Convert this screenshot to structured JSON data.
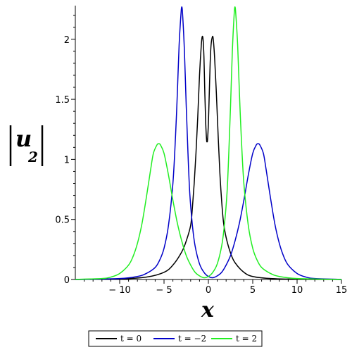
{
  "chart_data": {
    "type": "line",
    "xlabel": "x",
    "ylabel": {
      "base": "u",
      "subscript": "2"
    },
    "xlim": [
      -15,
      15
    ],
    "ylim": [
      0,
      2.28
    ],
    "xticks": [
      {
        "value": -10,
        "label": "− 10"
      },
      {
        "value": -5,
        "label": "− 5"
      },
      {
        "value": 0,
        "label": "0"
      },
      {
        "value": 5,
        "label": "5"
      },
      {
        "value": 10,
        "label": "10"
      },
      {
        "value": 15,
        "label": "15"
      }
    ],
    "yticks": [
      {
        "value": 0,
        "label": "0"
      },
      {
        "value": 0.5,
        "label": "0.5"
      },
      {
        "value": 1,
        "label": "1"
      },
      {
        "value": 1.5,
        "label": "1.5"
      },
      {
        "value": 2,
        "label": "2"
      }
    ],
    "legend_position": "bottom",
    "series": [
      {
        "name": "t = 0",
        "color": "#000000",
        "points": [
          [
            -15,
            0
          ],
          [
            -10,
            0.005
          ],
          [
            -7,
            0.02
          ],
          [
            -5,
            0.06
          ],
          [
            -4,
            0.12
          ],
          [
            -3,
            0.23
          ],
          [
            -2.5,
            0.32
          ],
          [
            -2,
            0.45
          ],
          [
            -1.8,
            0.6
          ],
          [
            -1.6,
            0.8
          ],
          [
            -1.4,
            1.05
          ],
          [
            -1.2,
            1.35
          ],
          [
            -1.0,
            1.7
          ],
          [
            -0.8,
            1.95
          ],
          [
            -0.7,
            2.02
          ],
          [
            -0.6,
            2.0
          ],
          [
            -0.5,
            1.85
          ],
          [
            -0.4,
            1.55
          ],
          [
            -0.3,
            1.3
          ],
          [
            -0.2,
            1.16
          ],
          [
            -0.15,
            1.15
          ],
          [
            -0.1,
            1.16
          ],
          [
            0,
            1.3
          ],
          [
            0.1,
            1.55
          ],
          [
            0.2,
            1.8
          ],
          [
            0.3,
            1.95
          ],
          [
            0.45,
            2.02
          ],
          [
            0.55,
            2.0
          ],
          [
            0.7,
            1.85
          ],
          [
            0.9,
            1.55
          ],
          [
            1.1,
            1.2
          ],
          [
            1.3,
            0.88
          ],
          [
            1.5,
            0.65
          ],
          [
            1.7,
            0.48
          ],
          [
            2,
            0.35
          ],
          [
            2.5,
            0.22
          ],
          [
            3,
            0.14
          ],
          [
            4,
            0.06
          ],
          [
            5,
            0.025
          ],
          [
            7,
            0.008
          ],
          [
            10,
            0.002
          ],
          [
            15,
            0
          ]
        ]
      },
      {
        "name": "t = −2",
        "color": "#0000c8",
        "points": [
          [
            -15,
            0
          ],
          [
            -10,
            0.008
          ],
          [
            -8,
            0.025
          ],
          [
            -7,
            0.05
          ],
          [
            -6,
            0.1
          ],
          [
            -5.5,
            0.16
          ],
          [
            -5,
            0.26
          ],
          [
            -4.5,
            0.45
          ],
          [
            -4,
            0.8
          ],
          [
            -3.7,
            1.2
          ],
          [
            -3.5,
            1.55
          ],
          [
            -3.3,
            1.95
          ],
          [
            -3.1,
            2.2
          ],
          [
            -3.0,
            2.27
          ],
          [
            -2.9,
            2.2
          ],
          [
            -2.7,
            1.9
          ],
          [
            -2.5,
            1.45
          ],
          [
            -2.3,
            1.05
          ],
          [
            -2.1,
            0.72
          ],
          [
            -1.8,
            0.45
          ],
          [
            -1.5,
            0.28
          ],
          [
            -1,
            0.13
          ],
          [
            -0.5,
            0.06
          ],
          [
            0,
            0.025
          ],
          [
            0.5,
            0.015
          ],
          [
            1,
            0.03
          ],
          [
            1.5,
            0.06
          ],
          [
            2,
            0.12
          ],
          [
            2.5,
            0.2
          ],
          [
            3,
            0.32
          ],
          [
            3.5,
            0.47
          ],
          [
            4,
            0.66
          ],
          [
            4.5,
            0.87
          ],
          [
            5,
            1.05
          ],
          [
            5.4,
            1.12
          ],
          [
            5.6,
            1.13
          ],
          [
            5.8,
            1.12
          ],
          [
            6.2,
            1.05
          ],
          [
            6.5,
            0.92
          ],
          [
            7,
            0.68
          ],
          [
            7.5,
            0.46
          ],
          [
            8,
            0.3
          ],
          [
            8.5,
            0.19
          ],
          [
            9,
            0.12
          ],
          [
            10,
            0.05
          ],
          [
            11,
            0.02
          ],
          [
            12,
            0.008
          ],
          [
            15,
            0.001
          ]
        ]
      },
      {
        "name": "t = 2",
        "color": "#22ee22",
        "points": [
          [
            -15,
            0.001
          ],
          [
            -12,
            0.008
          ],
          [
            -11,
            0.02
          ],
          [
            -10,
            0.05
          ],
          [
            -9,
            0.12
          ],
          [
            -8.5,
            0.19
          ],
          [
            -8,
            0.3
          ],
          [
            -7.5,
            0.46
          ],
          [
            -7,
            0.68
          ],
          [
            -6.5,
            0.92
          ],
          [
            -6.2,
            1.05
          ],
          [
            -5.8,
            1.12
          ],
          [
            -5.6,
            1.13
          ],
          [
            -5.4,
            1.12
          ],
          [
            -5,
            1.05
          ],
          [
            -4.5,
            0.87
          ],
          [
            -4,
            0.66
          ],
          [
            -3.5,
            0.47
          ],
          [
            -3,
            0.32
          ],
          [
            -2.5,
            0.2
          ],
          [
            -2,
            0.12
          ],
          [
            -1.5,
            0.06
          ],
          [
            -1,
            0.03
          ],
          [
            -0.5,
            0.015
          ],
          [
            0,
            0.025
          ],
          [
            0.5,
            0.06
          ],
          [
            1,
            0.13
          ],
          [
            1.5,
            0.28
          ],
          [
            1.8,
            0.45
          ],
          [
            2.1,
            0.72
          ],
          [
            2.3,
            1.05
          ],
          [
            2.5,
            1.45
          ],
          [
            2.7,
            1.9
          ],
          [
            2.9,
            2.2
          ],
          [
            3.0,
            2.27
          ],
          [
            3.1,
            2.2
          ],
          [
            3.3,
            1.95
          ],
          [
            3.5,
            1.55
          ],
          [
            3.7,
            1.2
          ],
          [
            4,
            0.8
          ],
          [
            4.5,
            0.45
          ],
          [
            5,
            0.26
          ],
          [
            5.5,
            0.16
          ],
          [
            6,
            0.1
          ],
          [
            7,
            0.05
          ],
          [
            8,
            0.025
          ],
          [
            10,
            0.008
          ],
          [
            15,
            0
          ]
        ]
      }
    ]
  }
}
